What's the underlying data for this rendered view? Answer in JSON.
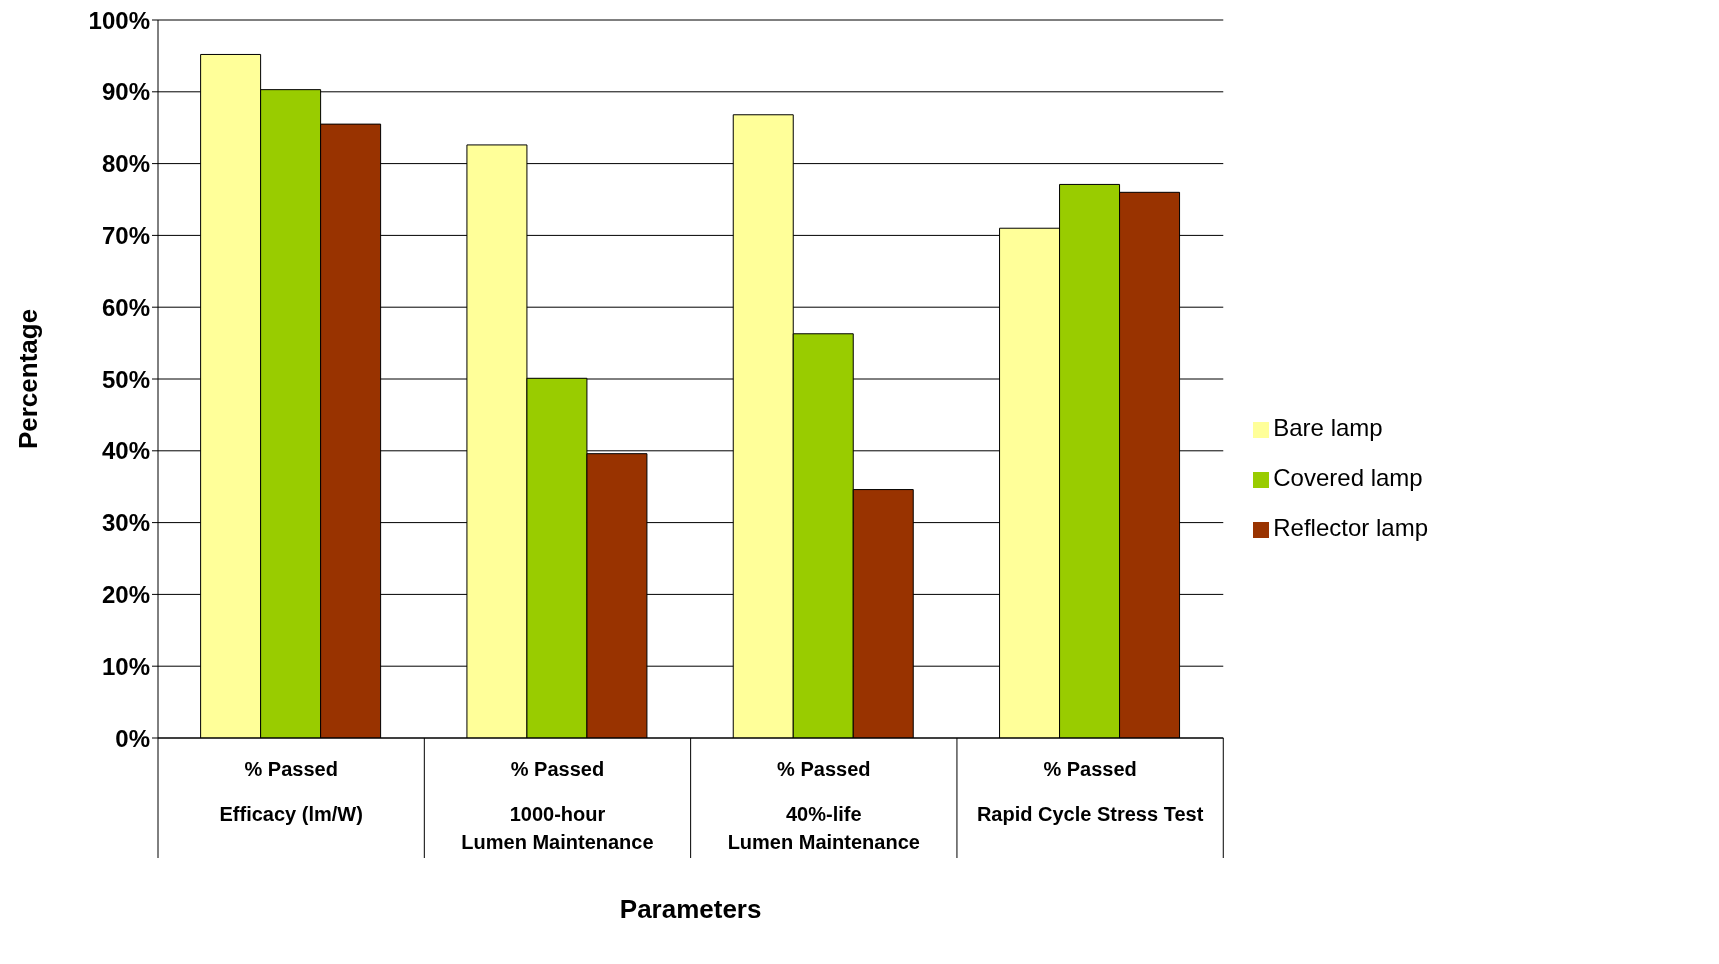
{
  "chart_data": {
    "type": "bar",
    "xlabel": "Parameters",
    "ylabel": "Percentage",
    "categories": [
      "% Passed\nEfficacy (lm/W)",
      "% Passed\n1000-hour\nLumen Maintenance",
      "% Passed\n40%-life\nLumen Maintenance",
      "% Passed\nRapid Cycle Stress Test"
    ],
    "series": [
      {
        "name": "Bare lamp",
        "color": "#ffff99",
        "values": [
          95.2,
          82.6,
          86.8,
          71
        ]
      },
      {
        "name": "Covered lamp",
        "color": "#99cc00",
        "values": [
          90.3,
          50.1,
          56.3,
          77.1
        ]
      },
      {
        "name": "Reflector lamp",
        "color": "#993300",
        "values": [
          85.5,
          39.6,
          34.6,
          76
        ]
      }
    ],
    "ylim": [
      0,
      100
    ],
    "yticks": [
      {
        "value": 0,
        "label": "0%"
      },
      {
        "value": 10,
        "label": "10%"
      },
      {
        "value": 20,
        "label": "20%"
      },
      {
        "value": 30,
        "label": "30%"
      },
      {
        "value": 40,
        "label": "40%"
      },
      {
        "value": 50,
        "label": "50%"
      },
      {
        "value": 60,
        "label": "60%"
      },
      {
        "value": 70,
        "label": "70%"
      },
      {
        "value": 80,
        "label": "80%"
      },
      {
        "value": 90,
        "label": "90%"
      },
      {
        "value": 100,
        "label": "100%"
      }
    ],
    "grid": "y",
    "legend": "right"
  }
}
